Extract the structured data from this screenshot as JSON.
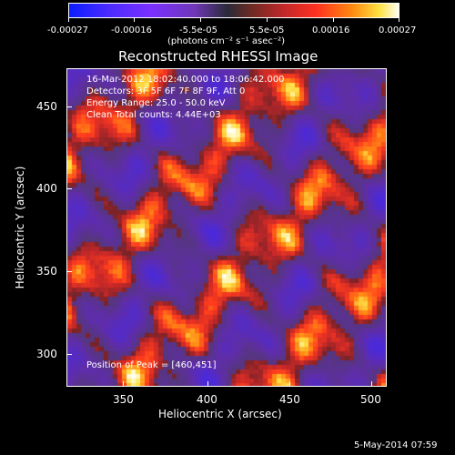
{
  "colorbar": {
    "ticks": [
      "-0.00027",
      "-0.00016",
      "-5.5e-05",
      "5.5e-05",
      "0.00016",
      "0.00027"
    ],
    "units": "(photons cm⁻² s⁻¹ asec⁻²)"
  },
  "title": "Reconstructed RHESSI Image",
  "info": {
    "time_range": "16-Mar-2012 18:02:40.000 to 18:06:42.000",
    "detectors": "Detectors: 3F 5F 6F 7F 8F 9F, Att 0",
    "energy": "Energy Range: 25.0 - 50.0 keV",
    "clean": "Clean     Total counts: 4.44E+03",
    "peak": "Position of Peak = [460,451]"
  },
  "axes": {
    "xlabel": "Heliocentric X (arcsec)",
    "ylabel": "Heliocentric Y (arcsec)",
    "x_ticks": [
      "350",
      "400",
      "450",
      "500"
    ],
    "y_ticks": [
      "450",
      "400",
      "350",
      "300"
    ]
  },
  "footer": {
    "date": "5-May-2014 07:59"
  },
  "colors": {
    "background": "#000000",
    "low": "#0a1cff",
    "mid": "#5a2c9e",
    "high": "#fffff0"
  }
}
